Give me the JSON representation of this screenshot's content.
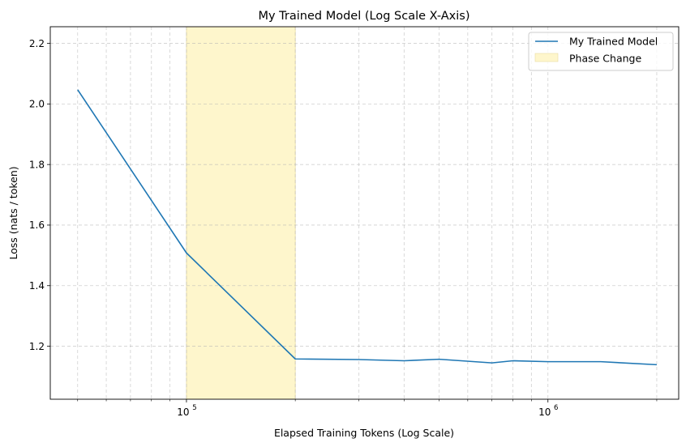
{
  "chart_data": {
    "type": "line",
    "title": "My Trained Model (Log Scale X-Axis)",
    "xlabel": "Elapsed Training Tokens (Log Scale)",
    "ylabel": "Loss (nats / token)",
    "xscale": "log",
    "xlim": [
      42000,
      2300000
    ],
    "ylim": [
      1.025,
      2.255
    ],
    "grid": true,
    "legend_position": "top-right",
    "x_ticks": [
      {
        "value": 100000,
        "base": "10",
        "exp": "5"
      },
      {
        "value": 1000000,
        "base": "10",
        "exp": "6"
      }
    ],
    "y_ticks": [
      1.2,
      1.4,
      1.6,
      1.8,
      2.0,
      2.2
    ],
    "y_tick_labels": [
      "1.2",
      "1.4",
      "1.6",
      "1.8",
      "2.0",
      "2.2"
    ],
    "series": [
      {
        "name": "My Trained Model",
        "color": "#1f77b4",
        "x": [
          50000,
          100000,
          200000,
          300000,
          400000,
          500000,
          700000,
          800000,
          1000000,
          1400000,
          2000000
        ],
        "y": [
          2.047,
          1.508,
          1.158,
          1.156,
          1.152,
          1.157,
          1.145,
          1.152,
          1.149,
          1.149,
          1.139
        ]
      }
    ],
    "spans": [
      {
        "name": "Phase Change",
        "x_start": 100000,
        "x_end": 200000,
        "color": "#fef6cc"
      }
    ],
    "legend": [
      {
        "label": "My Trained Model",
        "kind": "line",
        "color": "#1f77b4"
      },
      {
        "label": "Phase Change",
        "kind": "patch",
        "color": "#fef6cc"
      }
    ]
  }
}
